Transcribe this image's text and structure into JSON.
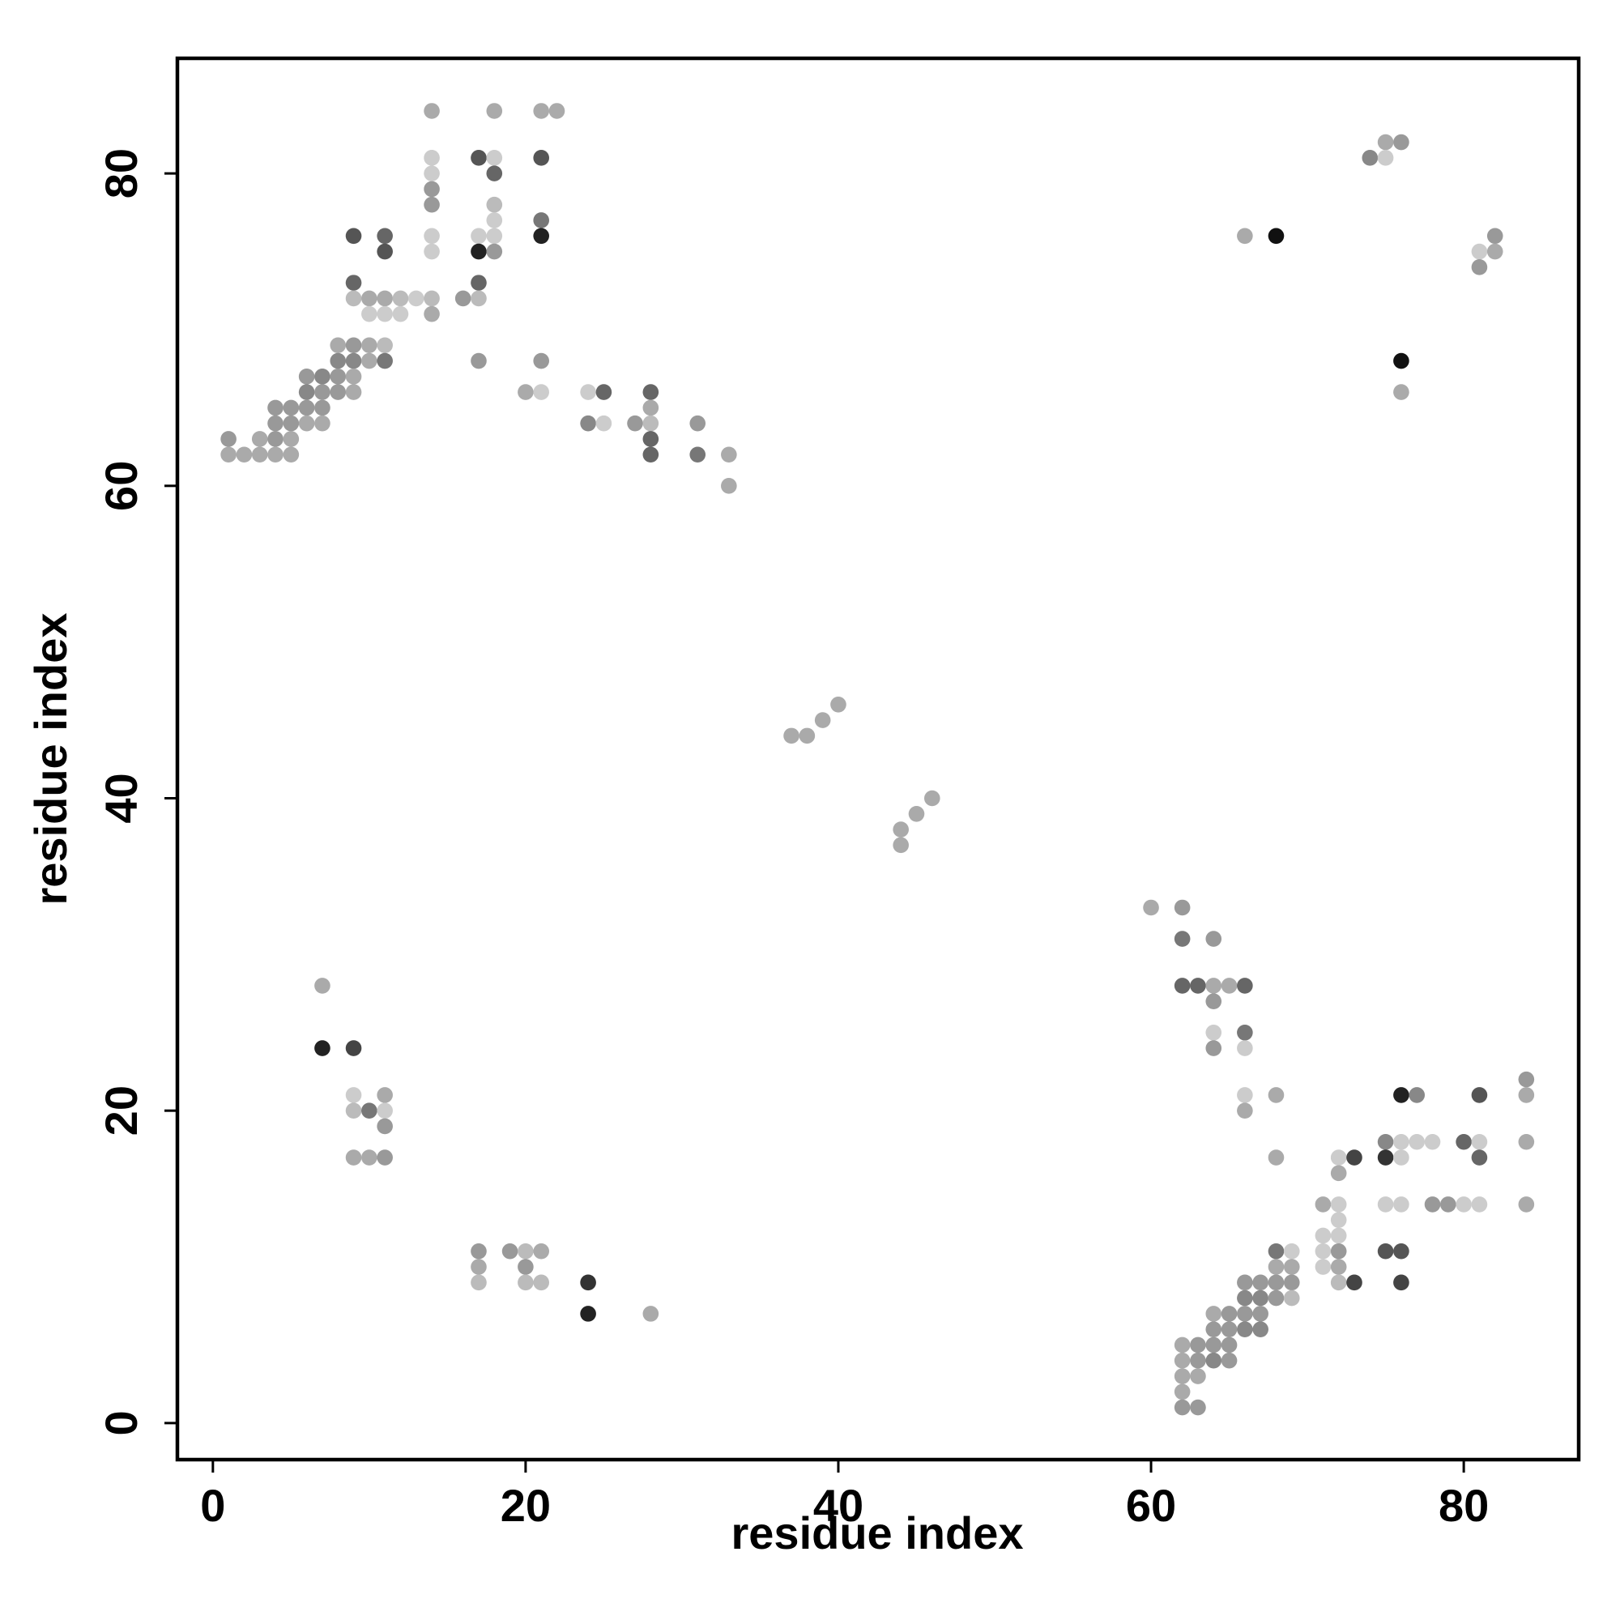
{
  "chart_data": {
    "type": "scatter",
    "x_label": "residue index",
    "y_label": "residue index",
    "xlim": [
      -2.27,
      87.35
    ],
    "ylim": [
      -2.34,
      87.37
    ],
    "xticks": [
      0,
      20,
      40,
      60,
      80
    ],
    "yticks": [
      0,
      20,
      40,
      60,
      80
    ],
    "points": [
      {
        "x": 14,
        "y": 84,
        "color": "#aaa"
      },
      {
        "x": 18,
        "y": 84,
        "color": "#aaa"
      },
      {
        "x": 21,
        "y": 84,
        "color": "#aaa"
      },
      {
        "x": 22,
        "y": 84,
        "color": "#aaa"
      },
      {
        "x": 75,
        "y": 82,
        "color": "#aaa"
      },
      {
        "x": 76,
        "y": 82,
        "color": "#999"
      },
      {
        "x": 14,
        "y": 81,
        "color": "#ccc"
      },
      {
        "x": 17,
        "y": 81,
        "color": "#555"
      },
      {
        "x": 18,
        "y": 81,
        "color": "#ccc"
      },
      {
        "x": 21,
        "y": 81,
        "color": "#555"
      },
      {
        "x": 74,
        "y": 81,
        "color": "#888"
      },
      {
        "x": 75,
        "y": 81,
        "color": "#ccc"
      },
      {
        "x": 14,
        "y": 80,
        "color": "#ccc"
      },
      {
        "x": 18,
        "y": 80,
        "color": "#666"
      },
      {
        "x": 14,
        "y": 79,
        "color": "#999"
      },
      {
        "x": 14,
        "y": 78,
        "color": "#999"
      },
      {
        "x": 18,
        "y": 78,
        "color": "#bbb"
      },
      {
        "x": 18,
        "y": 77,
        "color": "#ccc"
      },
      {
        "x": 21,
        "y": 77,
        "color": "#777"
      },
      {
        "x": 9,
        "y": 76,
        "color": "#555"
      },
      {
        "x": 11,
        "y": 76,
        "color": "#666"
      },
      {
        "x": 14,
        "y": 76,
        "color": "#ccc"
      },
      {
        "x": 17,
        "y": 76,
        "color": "#ccc"
      },
      {
        "x": 18,
        "y": 76,
        "color": "#ccc"
      },
      {
        "x": 21,
        "y": 76,
        "color": "#222"
      },
      {
        "x": 66,
        "y": 76,
        "color": "#aaa"
      },
      {
        "x": 68,
        "y": 76,
        "color": "#111"
      },
      {
        "x": 82,
        "y": 76,
        "color": "#999"
      },
      {
        "x": 11,
        "y": 75,
        "color": "#555"
      },
      {
        "x": 14,
        "y": 75,
        "color": "#ccc"
      },
      {
        "x": 17,
        "y": 75,
        "color": "#222"
      },
      {
        "x": 18,
        "y": 75,
        "color": "#999"
      },
      {
        "x": 81,
        "y": 75,
        "color": "#ccc"
      },
      {
        "x": 82,
        "y": 75,
        "color": "#aaa"
      },
      {
        "x": 81,
        "y": 74,
        "color": "#999"
      },
      {
        "x": 9,
        "y": 73,
        "color": "#666"
      },
      {
        "x": 17,
        "y": 73,
        "color": "#666"
      },
      {
        "x": 9,
        "y": 72,
        "color": "#bbb"
      },
      {
        "x": 10,
        "y": 72,
        "color": "#aaa"
      },
      {
        "x": 11,
        "y": 72,
        "color": "#aaa"
      },
      {
        "x": 12,
        "y": 72,
        "color": "#bbb"
      },
      {
        "x": 13,
        "y": 72,
        "color": "#ccc"
      },
      {
        "x": 14,
        "y": 72,
        "color": "#bbb"
      },
      {
        "x": 16,
        "y": 72,
        "color": "#999"
      },
      {
        "x": 17,
        "y": 72,
        "color": "#bbb"
      },
      {
        "x": 10,
        "y": 71,
        "color": "#ccc"
      },
      {
        "x": 11,
        "y": 71,
        "color": "#ccc"
      },
      {
        "x": 12,
        "y": 71,
        "color": "#ccc"
      },
      {
        "x": 14,
        "y": 71,
        "color": "#aaa"
      },
      {
        "x": 8,
        "y": 69,
        "color": "#aaa"
      },
      {
        "x": 9,
        "y": 69,
        "color": "#999"
      },
      {
        "x": 10,
        "y": 69,
        "color": "#aaa"
      },
      {
        "x": 11,
        "y": 69,
        "color": "#bbb"
      },
      {
        "x": 8,
        "y": 68,
        "color": "#888"
      },
      {
        "x": 9,
        "y": 68,
        "color": "#888"
      },
      {
        "x": 10,
        "y": 68,
        "color": "#aaa"
      },
      {
        "x": 11,
        "y": 68,
        "color": "#777"
      },
      {
        "x": 17,
        "y": 68,
        "color": "#999"
      },
      {
        "x": 21,
        "y": 68,
        "color": "#999"
      },
      {
        "x": 76,
        "y": 68,
        "color": "#111"
      },
      {
        "x": 6,
        "y": 67,
        "color": "#999"
      },
      {
        "x": 7,
        "y": 67,
        "color": "#888"
      },
      {
        "x": 8,
        "y": 67,
        "color": "#999"
      },
      {
        "x": 9,
        "y": 67,
        "color": "#aaa"
      },
      {
        "x": 6,
        "y": 66,
        "color": "#888"
      },
      {
        "x": 7,
        "y": 66,
        "color": "#999"
      },
      {
        "x": 8,
        "y": 66,
        "color": "#999"
      },
      {
        "x": 9,
        "y": 66,
        "color": "#aaa"
      },
      {
        "x": 20,
        "y": 66,
        "color": "#aaa"
      },
      {
        "x": 21,
        "y": 66,
        "color": "#ccc"
      },
      {
        "x": 24,
        "y": 66,
        "color": "#ccc"
      },
      {
        "x": 25,
        "y": 66,
        "color": "#666"
      },
      {
        "x": 28,
        "y": 66,
        "color": "#666"
      },
      {
        "x": 76,
        "y": 66,
        "color": "#aaa"
      },
      {
        "x": 4,
        "y": 65,
        "color": "#999"
      },
      {
        "x": 5,
        "y": 65,
        "color": "#999"
      },
      {
        "x": 6,
        "y": 65,
        "color": "#999"
      },
      {
        "x": 7,
        "y": 65,
        "color": "#999"
      },
      {
        "x": 28,
        "y": 65,
        "color": "#aaa"
      },
      {
        "x": 4,
        "y": 64,
        "color": "#999"
      },
      {
        "x": 5,
        "y": 64,
        "color": "#999"
      },
      {
        "x": 6,
        "y": 64,
        "color": "#aaa"
      },
      {
        "x": 7,
        "y": 64,
        "color": "#aaa"
      },
      {
        "x": 24,
        "y": 64,
        "color": "#888"
      },
      {
        "x": 25,
        "y": 64,
        "color": "#ccc"
      },
      {
        "x": 27,
        "y": 64,
        "color": "#999"
      },
      {
        "x": 28,
        "y": 64,
        "color": "#bbb"
      },
      {
        "x": 31,
        "y": 64,
        "color": "#999"
      },
      {
        "x": 1,
        "y": 63,
        "color": "#999"
      },
      {
        "x": 3,
        "y": 63,
        "color": "#aaa"
      },
      {
        "x": 4,
        "y": 63,
        "color": "#999"
      },
      {
        "x": 5,
        "y": 63,
        "color": "#aaa"
      },
      {
        "x": 28,
        "y": 63,
        "color": "#666"
      },
      {
        "x": 1,
        "y": 62,
        "color": "#aaa"
      },
      {
        "x": 2,
        "y": 62,
        "color": "#aaa"
      },
      {
        "x": 3,
        "y": 62,
        "color": "#aaa"
      },
      {
        "x": 4,
        "y": 62,
        "color": "#aaa"
      },
      {
        "x": 5,
        "y": 62,
        "color": "#aaa"
      },
      {
        "x": 28,
        "y": 62,
        "color": "#666"
      },
      {
        "x": 31,
        "y": 62,
        "color": "#777"
      },
      {
        "x": 33,
        "y": 62,
        "color": "#aaa"
      },
      {
        "x": 33,
        "y": 60,
        "color": "#aaa"
      },
      {
        "x": 40,
        "y": 46,
        "color": "#aaa"
      },
      {
        "x": 39,
        "y": 45,
        "color": "#aaa"
      },
      {
        "x": 37,
        "y": 44,
        "color": "#aaa"
      },
      {
        "x": 38,
        "y": 44,
        "color": "#aaa"
      },
      {
        "x": 46,
        "y": 40,
        "color": "#aaa"
      },
      {
        "x": 45,
        "y": 39,
        "color": "#aaa"
      },
      {
        "x": 44,
        "y": 38,
        "color": "#aaa"
      },
      {
        "x": 44,
        "y": 37,
        "color": "#aaa"
      },
      {
        "x": 60,
        "y": 33,
        "color": "#aaa"
      },
      {
        "x": 62,
        "y": 33,
        "color": "#999"
      },
      {
        "x": 62,
        "y": 31,
        "color": "#777"
      },
      {
        "x": 64,
        "y": 31,
        "color": "#999"
      },
      {
        "x": 7,
        "y": 28,
        "color": "#aaa"
      },
      {
        "x": 62,
        "y": 28,
        "color": "#666"
      },
      {
        "x": 63,
        "y": 28,
        "color": "#666"
      },
      {
        "x": 64,
        "y": 28,
        "color": "#aaa"
      },
      {
        "x": 65,
        "y": 28,
        "color": "#aaa"
      },
      {
        "x": 66,
        "y": 28,
        "color": "#666"
      },
      {
        "x": 64,
        "y": 27,
        "color": "#999"
      },
      {
        "x": 64,
        "y": 25,
        "color": "#ccc"
      },
      {
        "x": 66,
        "y": 25,
        "color": "#777"
      },
      {
        "x": 7,
        "y": 24,
        "color": "#222"
      },
      {
        "x": 9,
        "y": 24,
        "color": "#444"
      },
      {
        "x": 64,
        "y": 24,
        "color": "#999"
      },
      {
        "x": 66,
        "y": 24,
        "color": "#ccc"
      },
      {
        "x": 84,
        "y": 22,
        "color": "#999"
      },
      {
        "x": 9,
        "y": 21,
        "color": "#ccc"
      },
      {
        "x": 11,
        "y": 21,
        "color": "#aaa"
      },
      {
        "x": 66,
        "y": 21,
        "color": "#ccc"
      },
      {
        "x": 68,
        "y": 21,
        "color": "#aaa"
      },
      {
        "x": 76,
        "y": 21,
        "color": "#222"
      },
      {
        "x": 77,
        "y": 21,
        "color": "#888"
      },
      {
        "x": 81,
        "y": 21,
        "color": "#555"
      },
      {
        "x": 84,
        "y": 21,
        "color": "#aaa"
      },
      {
        "x": 9,
        "y": 20,
        "color": "#bbb"
      },
      {
        "x": 10,
        "y": 20,
        "color": "#777"
      },
      {
        "x": 11,
        "y": 20,
        "color": "#ccc"
      },
      {
        "x": 66,
        "y": 20,
        "color": "#aaa"
      },
      {
        "x": 11,
        "y": 19,
        "color": "#999"
      },
      {
        "x": 75,
        "y": 18,
        "color": "#888"
      },
      {
        "x": 76,
        "y": 18,
        "color": "#ccc"
      },
      {
        "x": 77,
        "y": 18,
        "color": "#ccc"
      },
      {
        "x": 78,
        "y": 18,
        "color": "#ccc"
      },
      {
        "x": 80,
        "y": 18,
        "color": "#666"
      },
      {
        "x": 81,
        "y": 18,
        "color": "#ccc"
      },
      {
        "x": 84,
        "y": 18,
        "color": "#aaa"
      },
      {
        "x": 9,
        "y": 17,
        "color": "#aaa"
      },
      {
        "x": 10,
        "y": 17,
        "color": "#aaa"
      },
      {
        "x": 11,
        "y": 17,
        "color": "#999"
      },
      {
        "x": 68,
        "y": 17,
        "color": "#aaa"
      },
      {
        "x": 72,
        "y": 17,
        "color": "#ccc"
      },
      {
        "x": 73,
        "y": 17,
        "color": "#444"
      },
      {
        "x": 75,
        "y": 17,
        "color": "#333"
      },
      {
        "x": 76,
        "y": 17,
        "color": "#ccc"
      },
      {
        "x": 81,
        "y": 17,
        "color": "#666"
      },
      {
        "x": 72,
        "y": 16,
        "color": "#aaa"
      },
      {
        "x": 71,
        "y": 14,
        "color": "#aaa"
      },
      {
        "x": 72,
        "y": 14,
        "color": "#ccc"
      },
      {
        "x": 75,
        "y": 14,
        "color": "#ccc"
      },
      {
        "x": 76,
        "y": 14,
        "color": "#ccc"
      },
      {
        "x": 78,
        "y": 14,
        "color": "#999"
      },
      {
        "x": 79,
        "y": 14,
        "color": "#999"
      },
      {
        "x": 80,
        "y": 14,
        "color": "#ccc"
      },
      {
        "x": 81,
        "y": 14,
        "color": "#ccc"
      },
      {
        "x": 84,
        "y": 14,
        "color": "#aaa"
      },
      {
        "x": 72,
        "y": 13,
        "color": "#ccc"
      },
      {
        "x": 71,
        "y": 12,
        "color": "#ccc"
      },
      {
        "x": 72,
        "y": 12,
        "color": "#ccc"
      },
      {
        "x": 17,
        "y": 11,
        "color": "#999"
      },
      {
        "x": 19,
        "y": 11,
        "color": "#999"
      },
      {
        "x": 20,
        "y": 11,
        "color": "#bbb"
      },
      {
        "x": 21,
        "y": 11,
        "color": "#aaa"
      },
      {
        "x": 68,
        "y": 11,
        "color": "#777"
      },
      {
        "x": 69,
        "y": 11,
        "color": "#ccc"
      },
      {
        "x": 71,
        "y": 11,
        "color": "#ccc"
      },
      {
        "x": 72,
        "y": 11,
        "color": "#999"
      },
      {
        "x": 75,
        "y": 11,
        "color": "#555"
      },
      {
        "x": 76,
        "y": 11,
        "color": "#555"
      },
      {
        "x": 17,
        "y": 10,
        "color": "#aaa"
      },
      {
        "x": 20,
        "y": 10,
        "color": "#999"
      },
      {
        "x": 68,
        "y": 10,
        "color": "#aaa"
      },
      {
        "x": 69,
        "y": 10,
        "color": "#aaa"
      },
      {
        "x": 71,
        "y": 10,
        "color": "#ccc"
      },
      {
        "x": 72,
        "y": 10,
        "color": "#aaa"
      },
      {
        "x": 17,
        "y": 9,
        "color": "#bbb"
      },
      {
        "x": 20,
        "y": 9,
        "color": "#bbb"
      },
      {
        "x": 21,
        "y": 9,
        "color": "#bbb"
      },
      {
        "x": 24,
        "y": 9,
        "color": "#333"
      },
      {
        "x": 66,
        "y": 9,
        "color": "#999"
      },
      {
        "x": 67,
        "y": 9,
        "color": "#999"
      },
      {
        "x": 68,
        "y": 9,
        "color": "#999"
      },
      {
        "x": 69,
        "y": 9,
        "color": "#999"
      },
      {
        "x": 72,
        "y": 9,
        "color": "#bbb"
      },
      {
        "x": 73,
        "y": 9,
        "color": "#444"
      },
      {
        "x": 76,
        "y": 9,
        "color": "#444"
      },
      {
        "x": 66,
        "y": 8,
        "color": "#888"
      },
      {
        "x": 67,
        "y": 8,
        "color": "#888"
      },
      {
        "x": 68,
        "y": 8,
        "color": "#999"
      },
      {
        "x": 69,
        "y": 8,
        "color": "#bbb"
      },
      {
        "x": 24,
        "y": 7,
        "color": "#222"
      },
      {
        "x": 28,
        "y": 7,
        "color": "#aaa"
      },
      {
        "x": 64,
        "y": 7,
        "color": "#aaa"
      },
      {
        "x": 65,
        "y": 7,
        "color": "#999"
      },
      {
        "x": 66,
        "y": 7,
        "color": "#999"
      },
      {
        "x": 67,
        "y": 7,
        "color": "#999"
      },
      {
        "x": 64,
        "y": 6,
        "color": "#999"
      },
      {
        "x": 65,
        "y": 6,
        "color": "#999"
      },
      {
        "x": 66,
        "y": 6,
        "color": "#888"
      },
      {
        "x": 67,
        "y": 6,
        "color": "#888"
      },
      {
        "x": 62,
        "y": 5,
        "color": "#aaa"
      },
      {
        "x": 63,
        "y": 5,
        "color": "#999"
      },
      {
        "x": 64,
        "y": 5,
        "color": "#999"
      },
      {
        "x": 65,
        "y": 5,
        "color": "#999"
      },
      {
        "x": 62,
        "y": 4,
        "color": "#aaa"
      },
      {
        "x": 63,
        "y": 4,
        "color": "#999"
      },
      {
        "x": 64,
        "y": 4,
        "color": "#888"
      },
      {
        "x": 65,
        "y": 4,
        "color": "#999"
      },
      {
        "x": 62,
        "y": 3,
        "color": "#aaa"
      },
      {
        "x": 63,
        "y": 3,
        "color": "#aaa"
      },
      {
        "x": 62,
        "y": 2,
        "color": "#aaa"
      },
      {
        "x": 62,
        "y": 1,
        "color": "#999"
      },
      {
        "x": 63,
        "y": 1,
        "color": "#999"
      }
    ]
  }
}
